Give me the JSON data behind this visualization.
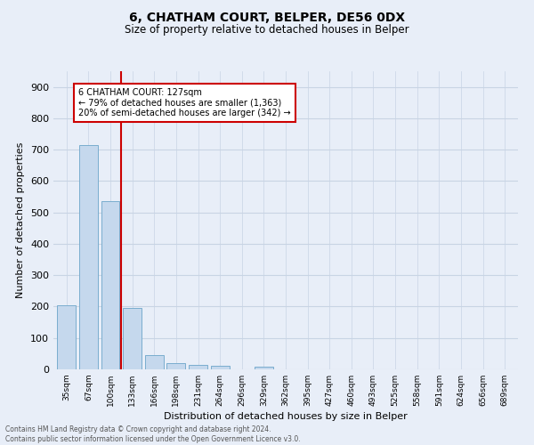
{
  "title1": "6, CHATHAM COURT, BELPER, DE56 0DX",
  "title2": "Size of property relative to detached houses in Belper",
  "xlabel": "Distribution of detached houses by size in Belper",
  "ylabel": "Number of detached properties",
  "categories": [
    "35sqm",
    "67sqm",
    "100sqm",
    "133sqm",
    "166sqm",
    "198sqm",
    "231sqm",
    "264sqm",
    "296sqm",
    "329sqm",
    "362sqm",
    "395sqm",
    "427sqm",
    "460sqm",
    "493sqm",
    "525sqm",
    "558sqm",
    "591sqm",
    "624sqm",
    "656sqm",
    "689sqm"
  ],
  "values": [
    203,
    714,
    537,
    196,
    44,
    19,
    15,
    10,
    0,
    9,
    0,
    0,
    0,
    0,
    0,
    0,
    0,
    0,
    0,
    0,
    0
  ],
  "bar_color": "#c5d8ed",
  "bar_edge_color": "#7aadce",
  "grid_color": "#c8d4e4",
  "vline_x": 2.5,
  "vline_color": "#cc0000",
  "annotation_text": "6 CHATHAM COURT: 127sqm\n← 79% of detached houses are smaller (1,363)\n20% of semi-detached houses are larger (342) →",
  "annotation_box_color": "#ffffff",
  "annotation_box_edge": "#cc0000",
  "ylim": [
    0,
    950
  ],
  "yticks": [
    0,
    100,
    200,
    300,
    400,
    500,
    600,
    700,
    800,
    900
  ],
  "footer1": "Contains HM Land Registry data © Crown copyright and database right 2024.",
  "footer2": "Contains public sector information licensed under the Open Government Licence v3.0.",
  "background_color": "#e8eef8",
  "plot_bg_color": "#e8eef8"
}
